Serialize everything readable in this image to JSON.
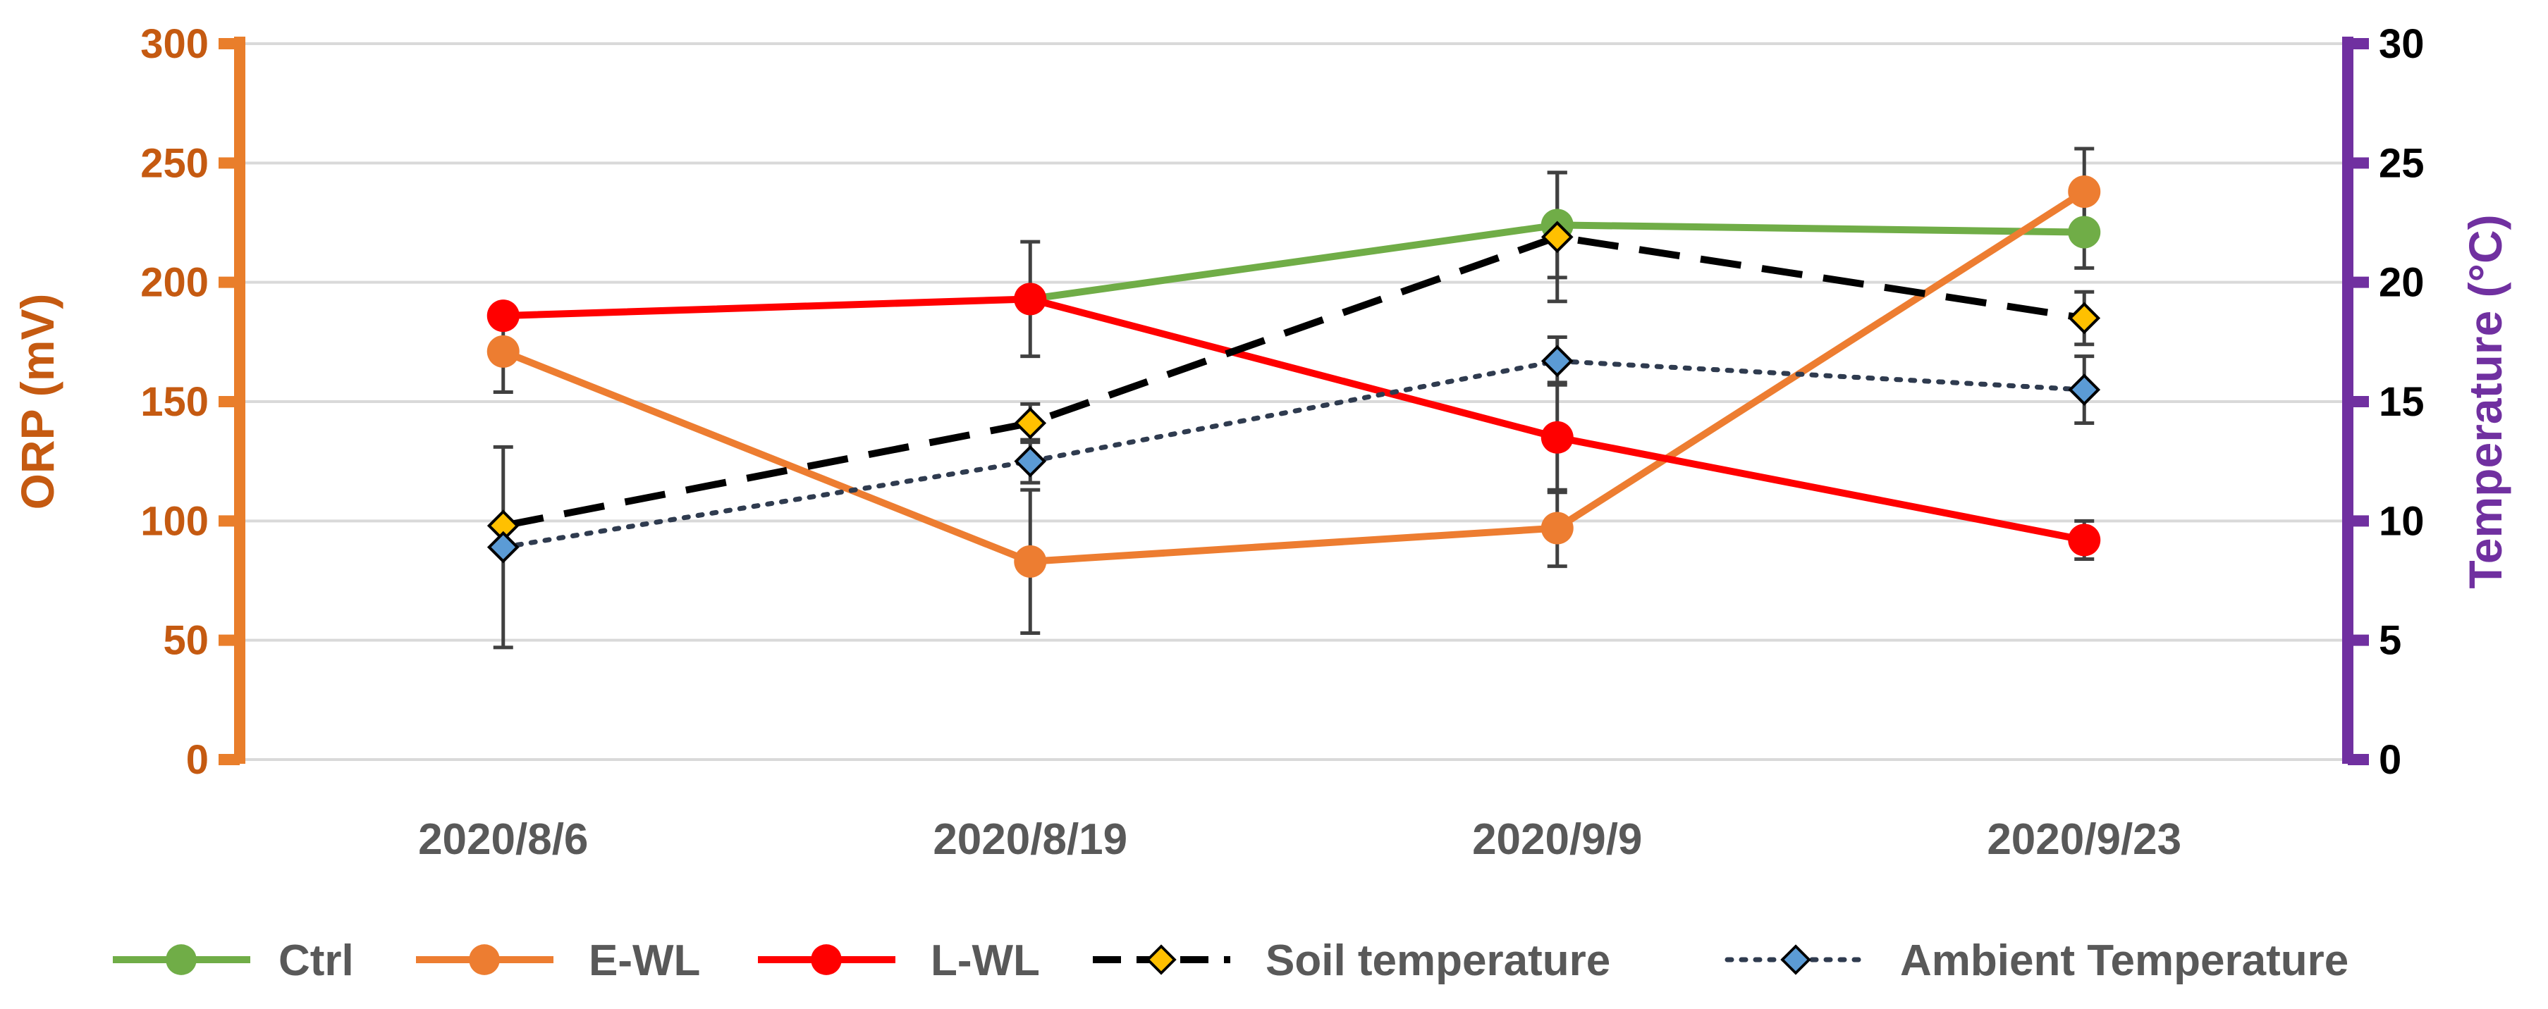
{
  "colors": {
    "left_axis": "#E97E2B",
    "left_axis_text": "#C55A11",
    "right_axis": "#7030A0",
    "x_tick_text": "#595959",
    "legend_text": "#595959",
    "grid": "#D9D9D9",
    "error_bar": "#404040"
  },
  "chart_data": {
    "type": "line",
    "categories": [
      "2020/8/6",
      "2020/8/19",
      "2020/9/9",
      "2020/9/23"
    ],
    "y_left": {
      "label": "ORP  (mV)",
      "lim": [
        0,
        300
      ],
      "ticks": [
        "0",
        "50",
        "100",
        "150",
        "200",
        "250",
        "300"
      ]
    },
    "y_right": {
      "label": "Temperature (°C)",
      "lim": [
        0,
        30
      ],
      "ticks": [
        "0",
        "5",
        "10",
        "15",
        "20",
        "25",
        "30"
      ]
    },
    "grid": true,
    "legend_position": "bottom",
    "series": [
      {
        "name": "Ctrl",
        "axis": "left",
        "color": "#70AD47",
        "style": "solid",
        "marker": "circle",
        "values": [
          null,
          193,
          224,
          221
        ],
        "errors": [
          null,
          null,
          22,
          15
        ]
      },
      {
        "name": "E-WL",
        "axis": "left",
        "color": "#ED7D31",
        "style": "solid",
        "marker": "circle",
        "values": [
          171,
          83,
          97,
          238
        ],
        "errors": [
          17,
          30,
          16,
          18
        ]
      },
      {
        "name": "L-WL",
        "axis": "left",
        "color": "#FF0000",
        "style": "solid",
        "marker": "circle",
        "values": [
          186,
          193,
          135,
          92
        ],
        "errors": [
          null,
          24,
          23,
          8
        ]
      },
      {
        "name": "Soil temperature",
        "axis": "right",
        "color": "#000000",
        "markerFill": "#FFC000",
        "style": "dashed",
        "marker": "diamond",
        "values": [
          9.8,
          14.1,
          21.9,
          18.5
        ],
        "errors": [
          null,
          0.8,
          2.7,
          1.1
        ]
      },
      {
        "name": "Ambient Temperature",
        "axis": "right",
        "color": "#2F3B4F",
        "markerFill": "#5B9BD5",
        "style": "dotted",
        "marker": "diamond",
        "values": [
          8.9,
          12.5,
          16.7,
          15.5
        ],
        "errors": [
          4.2,
          0.9,
          1.0,
          1.4
        ]
      }
    ]
  }
}
